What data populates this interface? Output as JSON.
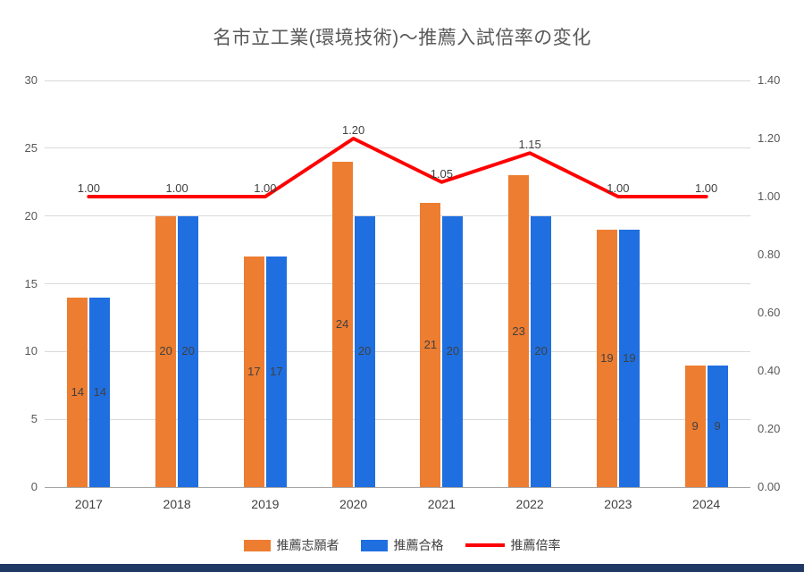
{
  "page": {
    "bottom_strip_color": "#1f3864",
    "background_color": "#ffffff"
  },
  "chart_data": {
    "type": "combo",
    "title": "名市立工業(環境技術)～推薦入試倍率の変化",
    "categories": [
      "2017",
      "2018",
      "2019",
      "2020",
      "2021",
      "2022",
      "2023",
      "2024"
    ],
    "series": [
      {
        "name": "推薦志願者",
        "type": "bar",
        "axis": "left",
        "color": "#ed7d31",
        "values": [
          14,
          20,
          17,
          24,
          21,
          23,
          19,
          9
        ],
        "labels": [
          "14",
          "20",
          "17",
          "24",
          "21",
          "23",
          "19",
          "9"
        ]
      },
      {
        "name": "推薦合格",
        "type": "bar",
        "axis": "left",
        "color": "#1f6fe0",
        "values": [
          14,
          20,
          17,
          20,
          20,
          20,
          19,
          9
        ],
        "labels": [
          "14",
          "20",
          "17",
          "20",
          "20",
          "20",
          "19",
          "9"
        ]
      },
      {
        "name": "推薦倍率",
        "type": "line",
        "axis": "right",
        "color": "#ff0000",
        "values": [
          1.0,
          1.0,
          1.0,
          1.2,
          1.05,
          1.15,
          1.0,
          1.0
        ],
        "labels": [
          "1.00",
          "1.00",
          "1.00",
          "1.20",
          "1.05",
          "1.15",
          "1.00",
          "1.00"
        ]
      }
    ],
    "left_axis": {
      "min": 0,
      "max": 30,
      "step": 5,
      "ticks": [
        "0",
        "5",
        "10",
        "15",
        "20",
        "25",
        "30"
      ]
    },
    "right_axis": {
      "min": 0.0,
      "max": 1.4,
      "step": 0.2,
      "ticks": [
        "0.00",
        "0.20",
        "0.40",
        "0.60",
        "0.80",
        "1.00",
        "1.20",
        "1.40"
      ]
    },
    "grid": true,
    "legend_position": "bottom"
  }
}
